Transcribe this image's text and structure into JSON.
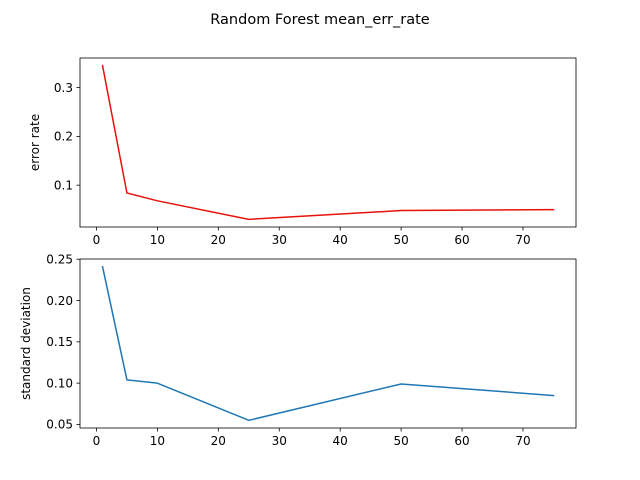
{
  "title": "Random Forest mean_err_rate",
  "chart_data": [
    {
      "type": "line",
      "x": [
        1,
        5,
        10,
        25,
        50,
        75
      ],
      "series": [
        {
          "values": [
            0.345,
            0.084,
            0.068,
            0.03,
            0.048,
            0.05
          ],
          "color": "#e8110b"
        }
      ],
      "xlabel": "",
      "ylabel": "error rate",
      "xlim": [
        -2.7,
        78.7
      ],
      "ylim": [
        0.0143,
        0.3607
      ],
      "xticks": [
        0,
        10,
        20,
        30,
        40,
        50,
        60,
        70
      ],
      "yticks": [
        0.1,
        0.2,
        0.3
      ],
      "ytick_labels": [
        "0.1",
        "0.2",
        "0.3"
      ],
      "grid": false
    },
    {
      "type": "line",
      "x": [
        1,
        5,
        10,
        25,
        50,
        75
      ],
      "series": [
        {
          "values": [
            0.241,
            0.104,
            0.1,
            0.055,
            0.099,
            0.085
          ],
          "color": "#1f77b4"
        }
      ],
      "xlabel": "",
      "ylabel": "standard deviation",
      "xlim": [
        -2.7,
        78.7
      ],
      "ylim": [
        0.0457,
        0.2503
      ],
      "xticks": [
        0,
        10,
        20,
        30,
        40,
        50,
        60,
        70
      ],
      "yticks": [
        0.05,
        0.1,
        0.15,
        0.2,
        0.25
      ],
      "ytick_labels": [
        "0.05",
        "0.10",
        "0.15",
        "0.20",
        "0.25"
      ],
      "grid": false
    }
  ]
}
